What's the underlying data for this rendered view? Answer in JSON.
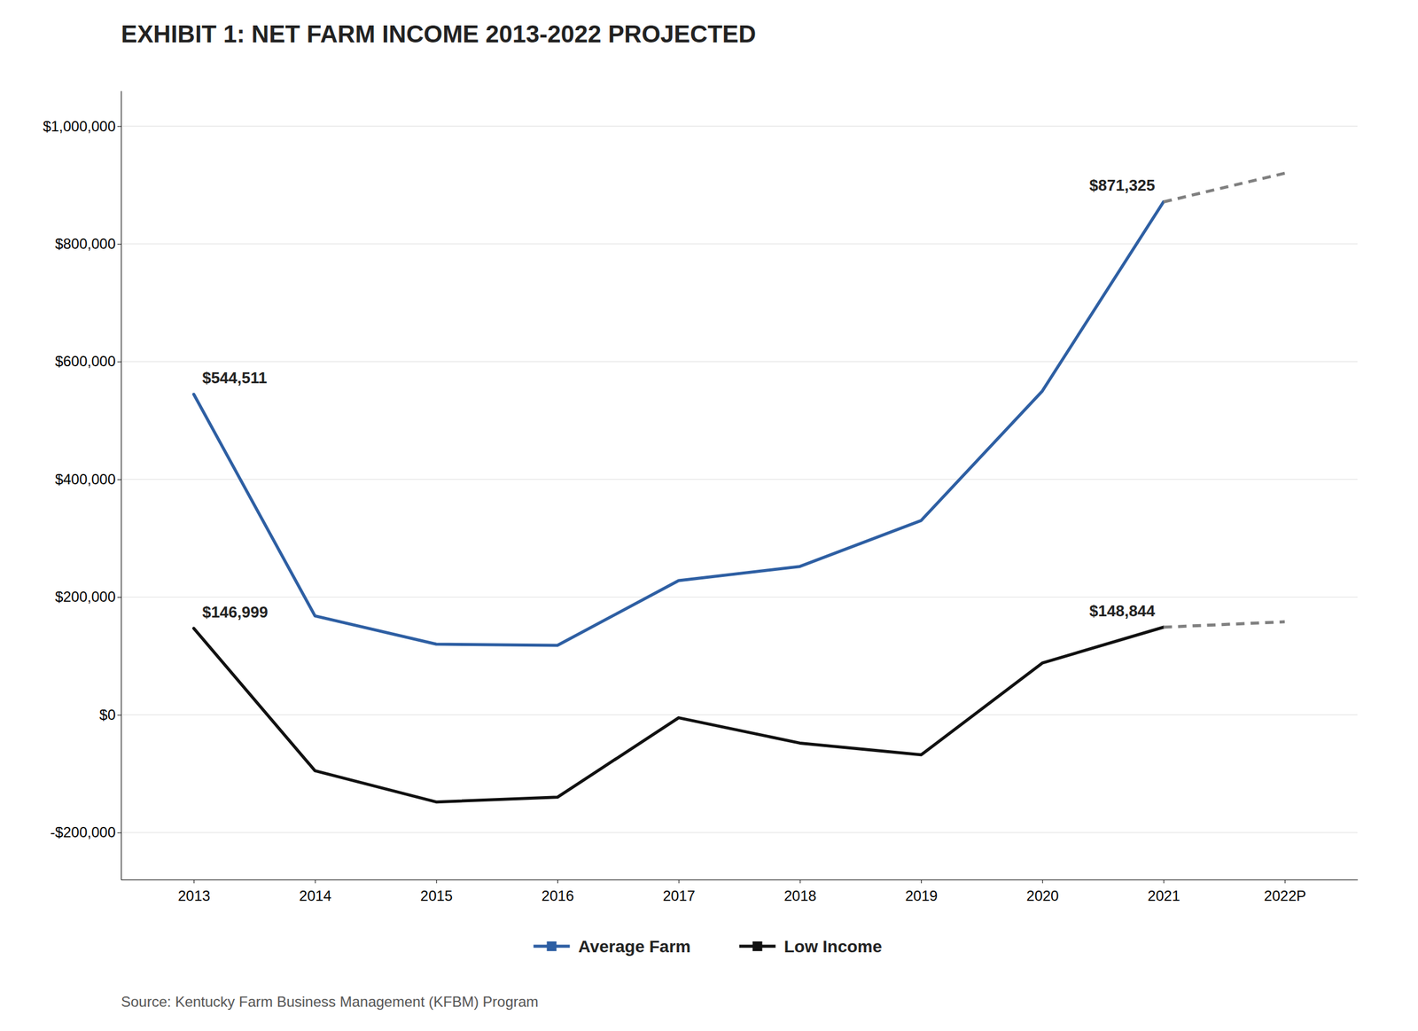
{
  "chart_data": {
    "type": "line",
    "title": "EXHIBIT 1: NET FARM INCOME 2013-2022 PROJECTED",
    "source": "Source: Kentucky Farm Business Management (KFBM) Program",
    "x": [
      2013,
      2014,
      2015,
      2016,
      2017,
      2018,
      2019,
      2020,
      2021,
      2022
    ],
    "series": [
      {
        "name": "Average Farm",
        "color": "#2E5FA3",
        "line_style": "solid",
        "values": [
          544511,
          168000,
          120000,
          118000,
          228000,
          252000,
          330000,
          550000,
          871325,
          null
        ]
      },
      {
        "color": "#808080",
        "line_style": "dashed",
        "values": [
          null,
          null,
          null,
          null,
          null,
          null,
          null,
          null,
          871325,
          920000
        ]
      },
      {
        "name": "Low Income",
        "color": "#111111",
        "line_style": "solid",
        "values": [
          146999,
          -95000,
          -148000,
          -140000,
          -5000,
          -48000,
          -68000,
          88000,
          148844,
          null
        ]
      },
      {
        "color": "#808080",
        "line_style": "dashed",
        "values": [
          null,
          null,
          null,
          null,
          null,
          null,
          null,
          null,
          148844,
          158000
        ]
      }
    ],
    "annotations": [
      {
        "text": "$146,999",
        "x": 2013,
        "y": 146999
      },
      {
        "text": "$544,511",
        "x": 2013,
        "y": 544511
      },
      {
        "text": "$871,325",
        "x": 2021,
        "y": 871325
      },
      {
        "text": "$148,844",
        "x": 2021,
        "y": 148844
      }
    ],
    "xlim": [
      2012.4,
      2022.6
    ],
    "xticks": [
      2013,
      2014,
      2015,
      2016,
      2017,
      2018,
      2019,
      2020,
      2021,
      {
        "value": 2022,
        "label": "2022P"
      }
    ],
    "ylim": [
      -280000,
      1060000
    ],
    "yticks": [
      {
        "value": -200000,
        "label": "-$200,000"
      },
      {
        "value": 0,
        "label": "$0"
      },
      {
        "value": 200000,
        "label": "$200,000"
      },
      {
        "value": 400000,
        "label": "$400,000"
      },
      {
        "value": 600000,
        "label": "$600,000"
      },
      {
        "value": 800000,
        "label": "$800,000"
      },
      {
        "value": 1000000,
        "label": "$1,000,000"
      }
    ],
    "grid": true,
    "legend": "bottom"
  }
}
